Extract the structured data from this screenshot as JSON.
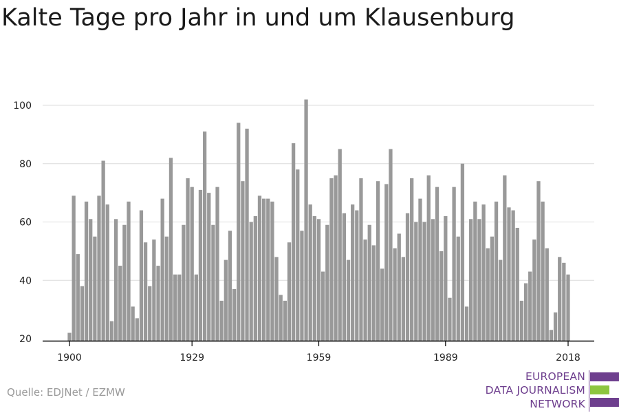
{
  "title": "Kalte Tage pro Jahr in und um Klausenburg",
  "source": "Quelle: EDJNet / EZMW",
  "logo": {
    "lines": [
      "EUROPEAN",
      "DATA JOURNALISM",
      "NETWORK"
    ],
    "colors": {
      "purple": "#6e3f8e",
      "green": "#8dc63f"
    }
  },
  "chart_data": {
    "type": "bar",
    "x_start": 1900,
    "x_end": 2018,
    "xticks": [
      1900,
      1929,
      1959,
      1989,
      2018
    ],
    "yticks": [
      20,
      40,
      60,
      80,
      100
    ],
    "ylim": [
      20,
      104
    ],
    "grid": true,
    "bar_color": "#999999",
    "values": [
      22,
      69,
      49,
      38,
      67,
      61,
      55,
      69,
      81,
      66,
      26,
      61,
      45,
      59,
      67,
      31,
      27,
      64,
      53,
      38,
      54,
      45,
      68,
      55,
      82,
      42,
      42,
      59,
      75,
      72,
      42,
      71,
      91,
      70,
      59,
      72,
      33,
      47,
      57,
      37,
      94,
      74,
      92,
      60,
      62,
      69,
      68,
      68,
      67,
      48,
      35,
      33,
      53,
      87,
      78,
      57,
      102,
      66,
      62,
      61,
      43,
      59,
      75,
      76,
      85,
      63,
      47,
      66,
      64,
      75,
      54,
      59,
      52,
      74,
      44,
      73,
      85,
      51,
      56,
      48,
      63,
      75,
      60,
      68,
      60,
      76,
      61,
      72,
      50,
      62,
      34,
      72,
      55,
      80,
      31,
      61,
      67,
      61,
      66,
      51,
      55,
      67,
      47,
      76,
      65,
      64,
      58,
      33,
      39,
      43,
      54,
      74,
      67,
      51,
      23,
      29,
      48,
      46,
      42
    ]
  }
}
